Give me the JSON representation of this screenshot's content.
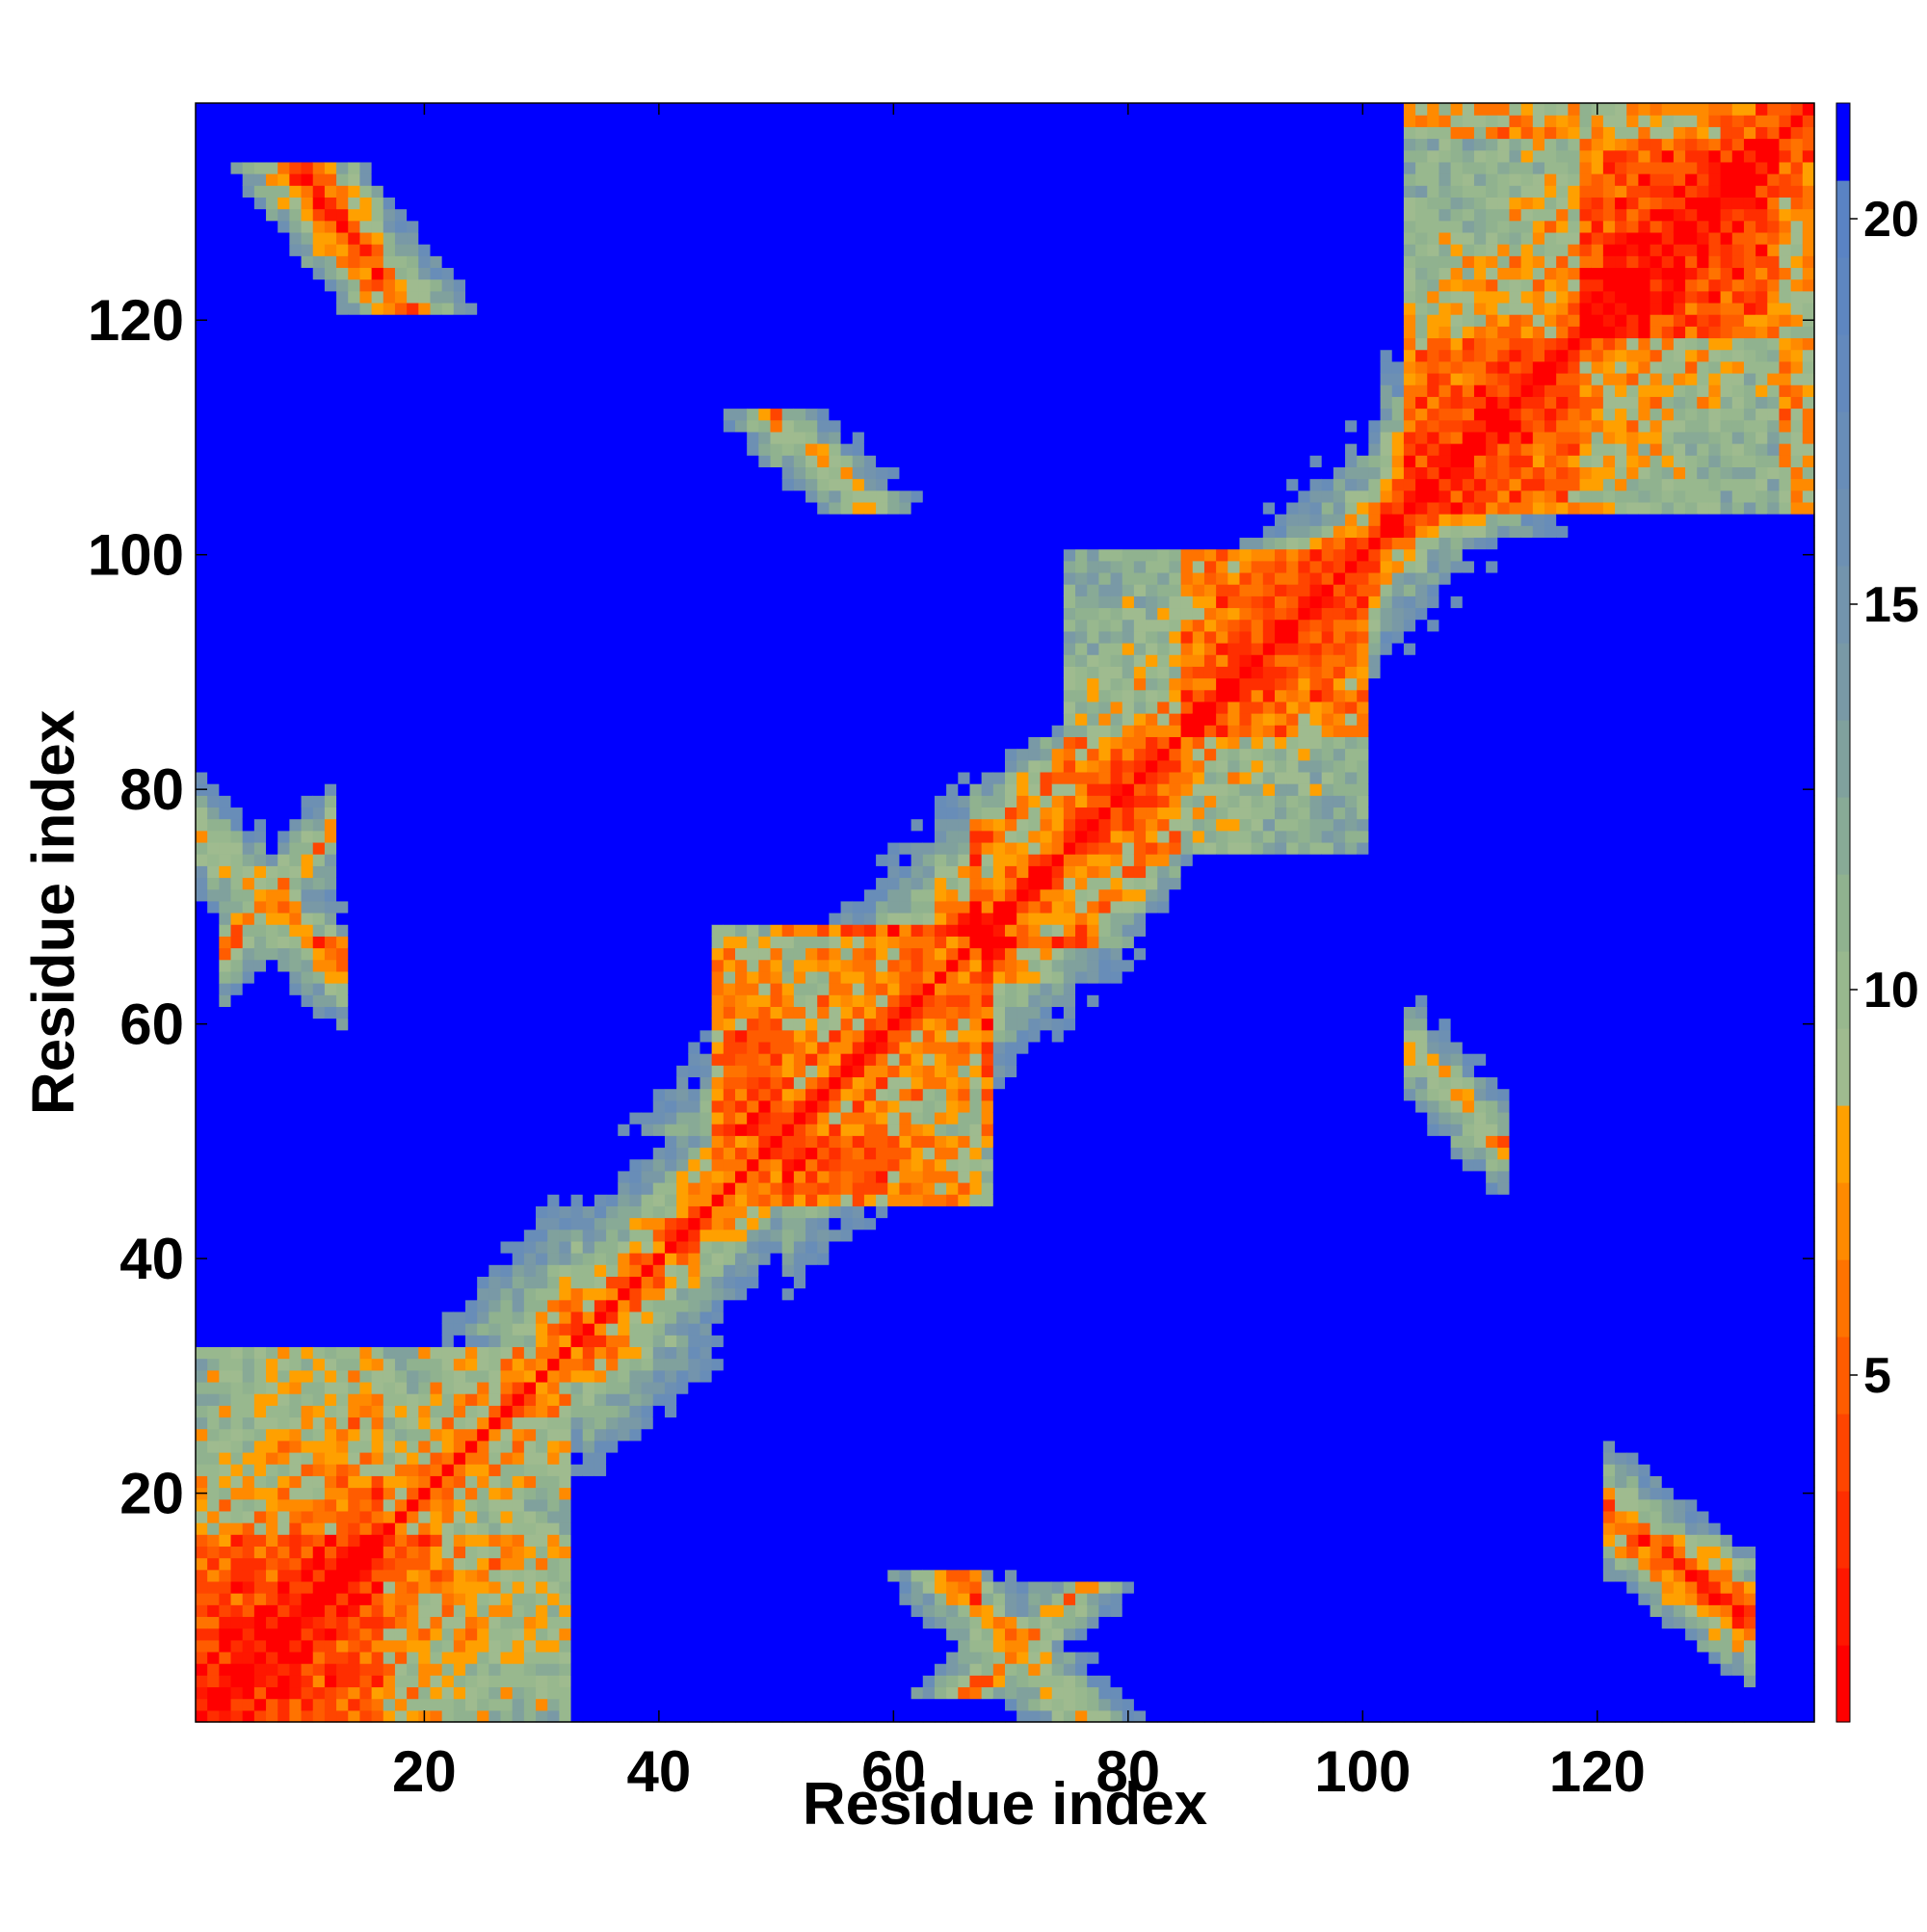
{
  "chart_data": {
    "type": "heatmap",
    "title": "",
    "xlabel": "Residue index",
    "ylabel": "Residue index",
    "n_residues": 138,
    "xlim": [
      1,
      138
    ],
    "ylim": [
      1,
      138
    ],
    "x_ticks": [
      20,
      40,
      60,
      80,
      100,
      120
    ],
    "y_ticks": [
      20,
      40,
      60,
      80,
      100,
      120
    ],
    "colorbar": {
      "range": [
        0,
        21
      ],
      "ticks": [
        5,
        10,
        15,
        20
      ],
      "levels": [
        {
          "max": 1,
          "color": "#ff0000"
        },
        {
          "max": 2,
          "color": "#ff1700"
        },
        {
          "max": 3,
          "color": "#ff2e00"
        },
        {
          "max": 4,
          "color": "#ff4500"
        },
        {
          "max": 5,
          "color": "#ff5c00"
        },
        {
          "max": 6,
          "color": "#ff7300"
        },
        {
          "max": 7,
          "color": "#ff8a00"
        },
        {
          "max": 8,
          "color": "#ffa000"
        },
        {
          "max": 9,
          "color": "#9fbb8f"
        },
        {
          "max": 10,
          "color": "#98b88e"
        },
        {
          "max": 11,
          "color": "#90b28f"
        },
        {
          "max": 12,
          "color": "#88aa96"
        },
        {
          "max": 13,
          "color": "#80a19d"
        },
        {
          "max": 14,
          "color": "#7999a6"
        },
        {
          "max": 15,
          "color": "#7394ad"
        },
        {
          "max": 16,
          "color": "#6d90b3"
        },
        {
          "max": 17,
          "color": "#688db8"
        },
        {
          "max": 18,
          "color": "#6389bd"
        },
        {
          "max": 19,
          "color": "#5e86c0"
        },
        {
          "max": 20,
          "color": "#5a83c4"
        },
        {
          "max": 21,
          "color": "#0000ff"
        }
      ]
    },
    "secondary_structure_features": [
      {
        "type": "helix",
        "start": 1,
        "end": 32
      },
      {
        "type": "helix",
        "start": 45,
        "end": 68
      },
      {
        "type": "helix",
        "start": 75,
        "end": 100
      },
      {
        "type": "helix",
        "start": 104,
        "end": 138
      },
      {
        "type": "antiparallel_contact",
        "i": [
          1,
          12
        ],
        "j": [
          76,
          66
        ]
      },
      {
        "type": "antiparallel_contact",
        "i": [
          75,
          67
        ],
        "j": [
          82,
          75
        ]
      },
      {
        "type": "antiparallel_contact",
        "i": [
          104,
          112
        ],
        "j": [
          58,
          50
        ]
      },
      {
        "type": "antiparallel_contact",
        "i": [
          122,
          132
        ],
        "j": [
          18,
          10
        ]
      },
      {
        "type": "parallel_contact",
        "i": [
          3,
          12
        ],
        "j": [
          67,
          76
        ]
      }
    ]
  }
}
